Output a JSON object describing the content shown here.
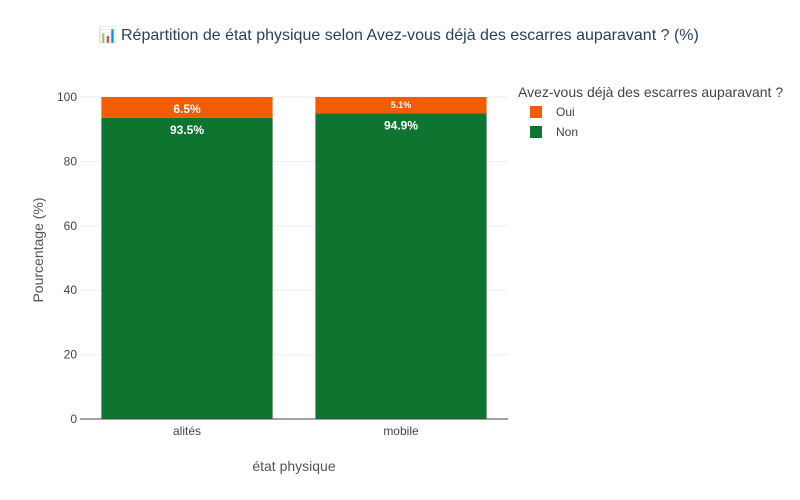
{
  "chart_data": {
    "type": "bar",
    "stacked": true,
    "title_icon": "📊",
    "title": "Répartition de état physique  selon Avez-vous déjà des escarres auparavant ? (%)",
    "xlabel": "état physique",
    "ylabel": "Pourcentage (%)",
    "categories": [
      "alités",
      "mobile"
    ],
    "ylim": [
      0,
      100
    ],
    "yticks": [
      0,
      20,
      40,
      60,
      80,
      100
    ],
    "grid": true,
    "legend_position": "top-right",
    "legend_title": "Avez-vous déjà des escarres auparavant ?",
    "series": [
      {
        "name": "Non",
        "color": "#0d7530",
        "values": [
          93.5,
          94.9
        ],
        "labels": [
          "93.5%",
          "94.9%"
        ]
      },
      {
        "name": "Oui",
        "color": "#f25c05",
        "values": [
          6.5,
          5.1
        ],
        "labels": [
          "6.5%",
          "5.1%"
        ]
      }
    ],
    "legend_order": [
      "Oui",
      "Non"
    ]
  }
}
